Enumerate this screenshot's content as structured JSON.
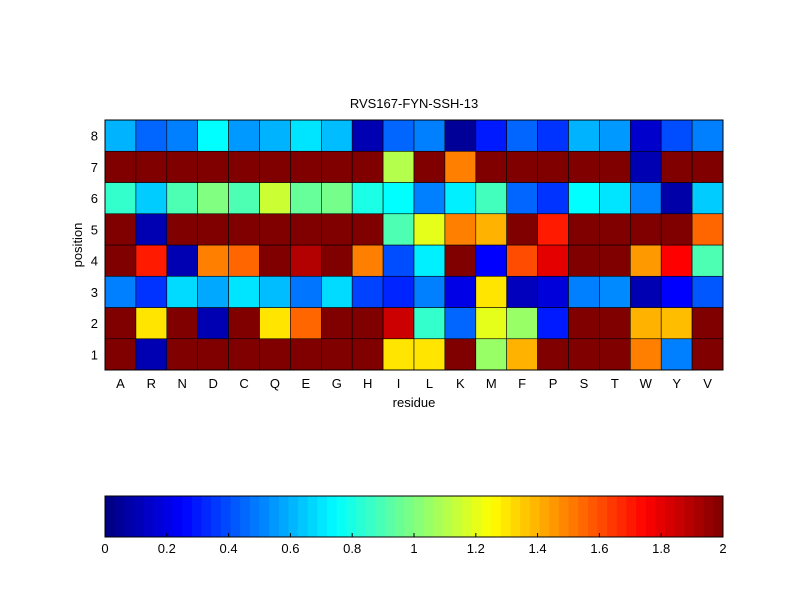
{
  "chart_data": {
    "type": "heatmap",
    "title": "RVS167-FYN-SSH-13",
    "xlabel": "residue",
    "ylabel": "position",
    "x_categories": [
      "A",
      "R",
      "N",
      "D",
      "C",
      "Q",
      "E",
      "G",
      "H",
      "I",
      "L",
      "K",
      "M",
      "F",
      "P",
      "S",
      "T",
      "W",
      "Y",
      "V"
    ],
    "y_categories": [
      "1",
      "2",
      "3",
      "4",
      "5",
      "6",
      "7",
      "8"
    ],
    "colormap": "jet",
    "clim": [
      0,
      2
    ],
    "colorbar": {
      "placement": "bottom",
      "ticks": [
        0,
        0.2,
        0.4,
        0.6,
        0.8,
        1,
        1.2,
        1.4,
        1.6,
        1.8,
        2
      ],
      "tick_labels": [
        "0",
        "0.2",
        "0.4",
        "0.6",
        "0.8",
        "1",
        "1.2",
        "1.4",
        "1.6",
        "1.8",
        "2"
      ]
    },
    "values_by_position": {
      "1": [
        2,
        0.1,
        2,
        2,
        2,
        2,
        2,
        2,
        2,
        1.3,
        1.3,
        2,
        1.05,
        1.4,
        2,
        2,
        2,
        1.5,
        0.5,
        2
      ],
      "2": [
        2,
        1.3,
        2,
        0.1,
        2,
        1.3,
        1.55,
        2,
        2,
        1.85,
        0.85,
        0.45,
        1.2,
        1.05,
        0.3,
        2,
        2,
        1.4,
        1.38,
        2
      ],
      "3": [
        0.5,
        0.35,
        0.68,
        0.58,
        0.7,
        0.62,
        0.48,
        0.68,
        0.38,
        0.32,
        0.5,
        0.2,
        1.3,
        0.12,
        0.18,
        0.5,
        0.52,
        0.1,
        0.25,
        0.42
      ],
      "4": [
        2,
        1.7,
        0.1,
        1.5,
        1.55,
        2,
        1.9,
        2,
        1.5,
        0.4,
        0.72,
        2,
        0.25,
        1.6,
        1.8,
        2,
        2,
        1.45,
        1.75,
        0.9
      ],
      "5": [
        2,
        0.1,
        2,
        2,
        2,
        2,
        2,
        2,
        2,
        0.9,
        1.2,
        1.5,
        1.4,
        2,
        1.7,
        2,
        2,
        2,
        2,
        1.55
      ],
      "6": [
        0.85,
        0.65,
        0.9,
        1.0,
        0.9,
        1.15,
        0.95,
        0.98,
        0.8,
        0.75,
        0.5,
        0.72,
        0.88,
        0.45,
        0.35,
        0.75,
        0.7,
        0.5,
        0.08,
        0.65
      ],
      "7": [
        2,
        2,
        2,
        2,
        2,
        2,
        2,
        2,
        2,
        1.1,
        2,
        1.5,
        2,
        2,
        2,
        2,
        2,
        0.1,
        2,
        2
      ],
      "8": [
        0.6,
        0.45,
        0.5,
        0.75,
        0.55,
        0.6,
        0.7,
        0.62,
        0.1,
        0.45,
        0.5,
        0.05,
        0.3,
        0.45,
        0.35,
        0.6,
        0.55,
        0.15,
        0.4,
        0.5
      ]
    }
  }
}
